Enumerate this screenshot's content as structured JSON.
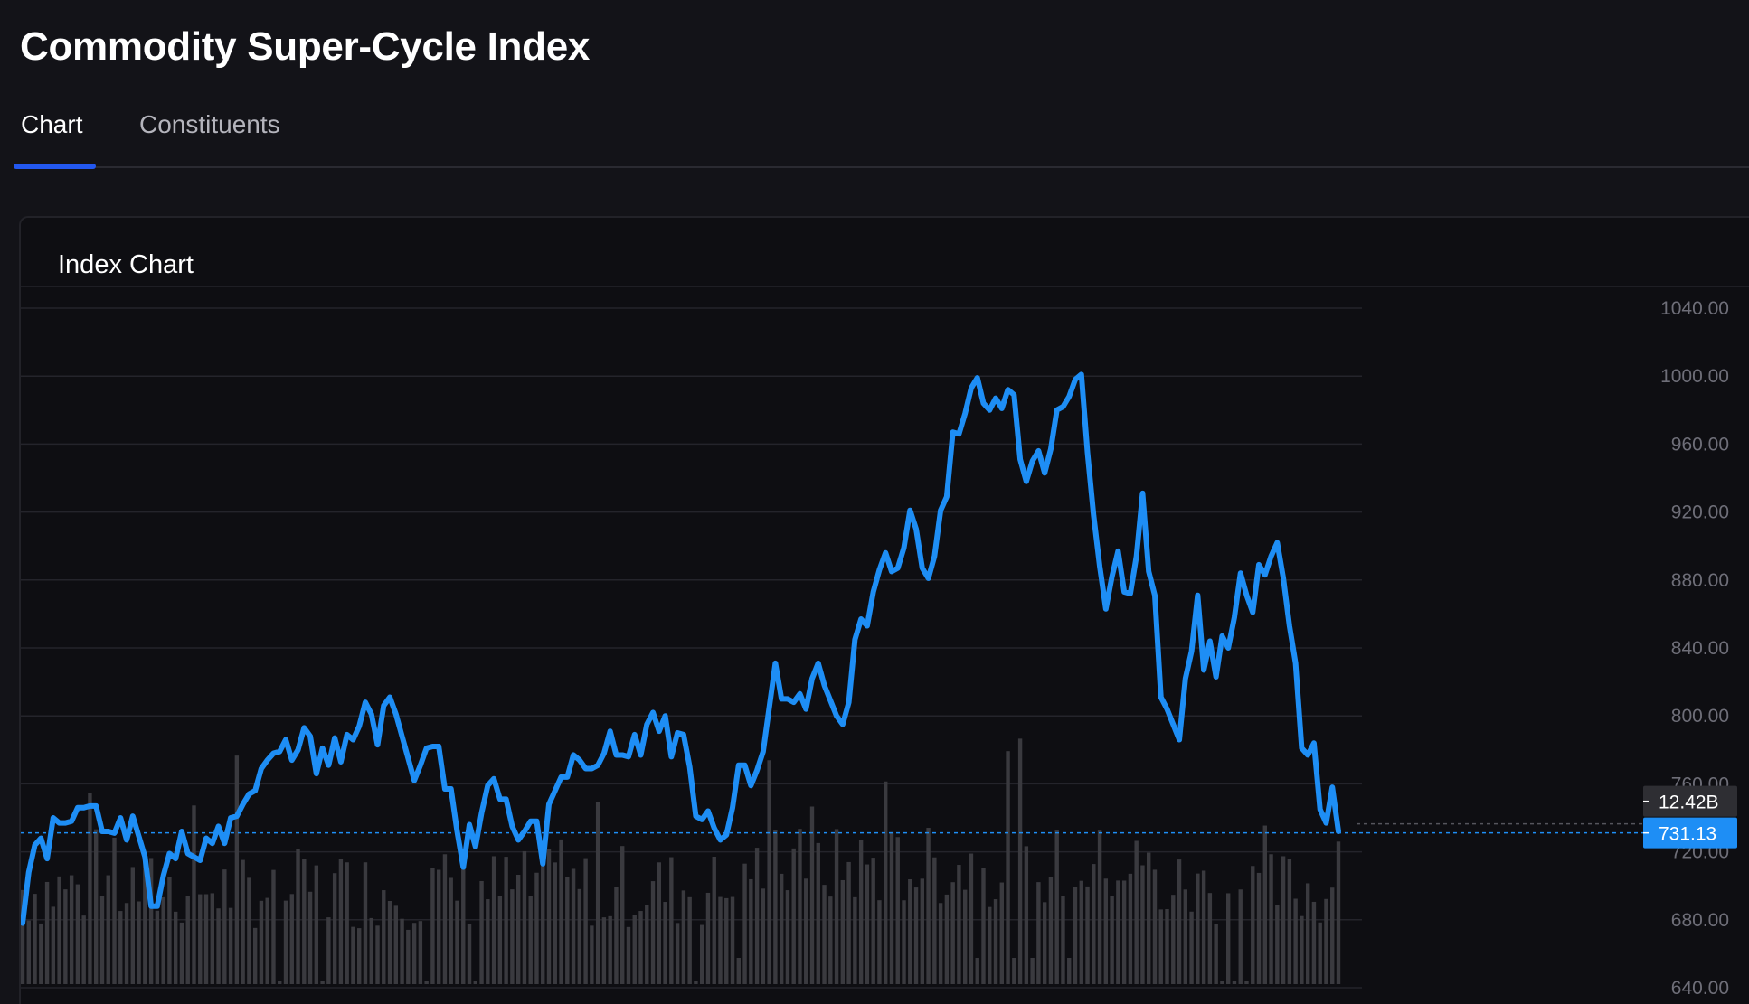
{
  "page": {
    "title": "Commodity Super-Cycle Index"
  },
  "tabs": [
    {
      "label": "Chart",
      "active": true
    },
    {
      "label": "Constituents",
      "active": false
    }
  ],
  "panel": {
    "title": "Index Chart"
  },
  "colors": {
    "line": "#1e8ef5",
    "volume_bar": "#3a3a3f",
    "grid": "#24242b",
    "accent_tab": "#2358f0",
    "last_value_badge": "#1e8ef5",
    "volume_badge": "#2e2e33"
  },
  "chart_data": {
    "type": "line",
    "y_axis_ticks": [
      "640.00",
      "680.00",
      "720.00",
      "760.00",
      "800.00",
      "840.00",
      "880.00",
      "920.00",
      "960.00",
      "1000.00",
      "1040.00"
    ],
    "ylim": [
      640,
      1050
    ],
    "grid": true,
    "last_value_label": "731.13",
    "last_volume_label": "12.42B",
    "series": [
      {
        "values": [
          678,
          708,
          724,
          728,
          716,
          740,
          737,
          737,
          738,
          746,
          746,
          747,
          747,
          732,
          732,
          731,
          740,
          727,
          741,
          729,
          717,
          688,
          688,
          706,
          719,
          716,
          732,
          719,
          717,
          715,
          728,
          725,
          735,
          725,
          740,
          741,
          748,
          754,
          756,
          769,
          774,
          778,
          779,
          786,
          774,
          780,
          793,
          788,
          766,
          781,
          771,
          787,
          773,
          789,
          786,
          794,
          808,
          801,
          783,
          806,
          811,
          801,
          788,
          775,
          762,
          771,
          781,
          782,
          782,
          757,
          757,
          732,
          711,
          736,
          723,
          743,
          759,
          763,
          751,
          751,
          735,
          727,
          732,
          738,
          738,
          713,
          748,
          756,
          764,
          764,
          777,
          774,
          769,
          769,
          771,
          778,
          791,
          777,
          777,
          776,
          789,
          777,
          795,
          802,
          791,
          800,
          776,
          790,
          789,
          770,
          741,
          739,
          744,
          734,
          727,
          730,
          746,
          771,
          771,
          759,
          768,
          779,
          805,
          831,
          810,
          810,
          808,
          813,
          804,
          822,
          831,
          818,
          809,
          800,
          795,
          808,
          845,
          857,
          853,
          873,
          886,
          896,
          885,
          887,
          899,
          921,
          910,
          887,
          881,
          894,
          921,
          929,
          967,
          966,
          978,
          993,
          999,
          984,
          980,
          987,
          981,
          992,
          989,
          951,
          938,
          950,
          956,
          943,
          957,
          980,
          982,
          988,
          998,
          1001,
          955,
          918,
          888,
          863,
          882,
          897,
          873,
          872,
          894,
          931,
          885,
          871,
          811,
          804,
          795,
          786,
          822,
          838,
          871,
          827,
          844,
          823,
          847,
          840,
          858,
          884,
          871,
          861,
          889,
          883,
          894,
          902,
          881,
          853,
          831,
          781,
          777,
          784,
          745,
          737,
          758,
          732
        ]
      }
    ]
  }
}
